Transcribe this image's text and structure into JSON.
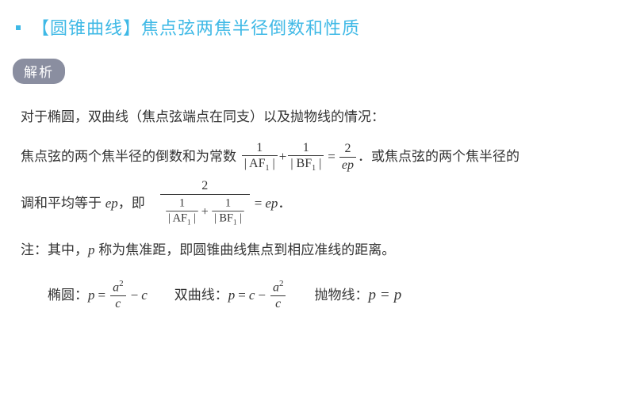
{
  "colors": {
    "accent": "#3fb9e6",
    "pill_bg": "#8a8ea0",
    "pill_text": "#ffffff",
    "text": "#333333",
    "background": "#ffffff"
  },
  "typography": {
    "title_fontsize": 22,
    "body_fontsize": 17,
    "math_font": "Times New Roman"
  },
  "title": "【圆锥曲线】焦点弦两焦半径倒数和性质",
  "section_label": "解析",
  "para1": "对于椭圆，双曲线（焦点弦端点在同支）以及抛物线的情况：",
  "para2_prefix": "焦点弦的两个焦半径的倒数和为常数 ",
  "para2_suffix": "．或焦点弦的两个焦半径的",
  "para3_prefix": "调和平均等于 ",
  "para3_mid": "，即　",
  "para3_suffix": "．",
  "note_text": "注：其中，",
  "note_mid": " 称为焦准距，即圆锥曲线焦点到相应准线的距离。",
  "formula_labels": {
    "ellipse": "椭圆：",
    "hyperbola": "双曲线：",
    "parabola": "抛物线："
  },
  "math": {
    "one": "1",
    "two": "2",
    "AF1": "| AF",
    "AF1_sub": "1",
    "AF1_close": " |",
    "BF1": "| BF",
    "BF1_sub": "1",
    "BF1_close": " |",
    "plus": "+",
    "eq": "=",
    "minus": "−",
    "ep": "ep",
    "e": "e",
    "p": "p",
    "a": "a",
    "c": "c",
    "sq": "2"
  }
}
